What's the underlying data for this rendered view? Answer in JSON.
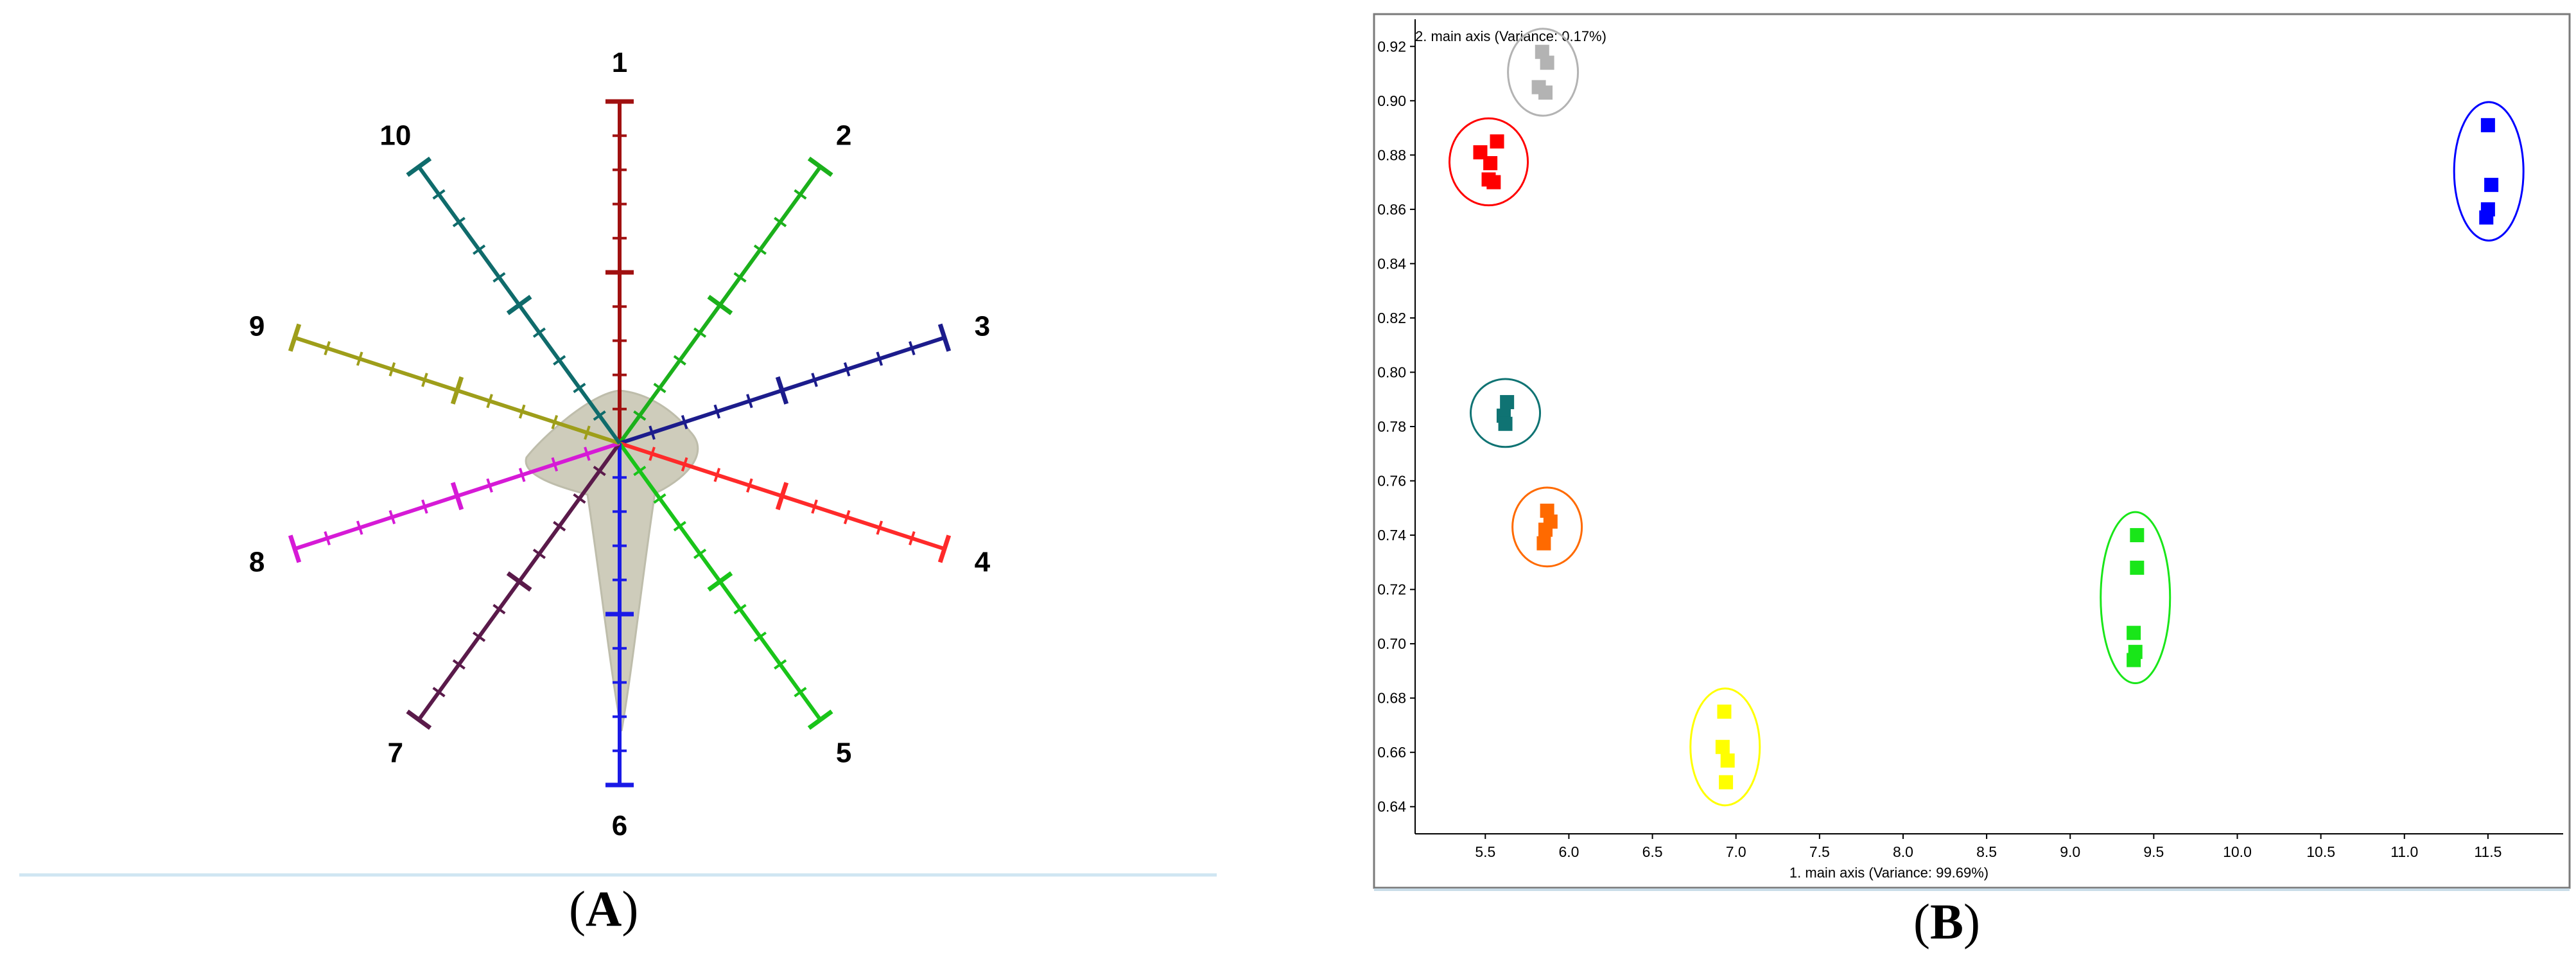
{
  "panels": {
    "a_label": "A",
    "b_label": "B"
  },
  "chart_data": [
    {
      "type": "radar",
      "panel": "A",
      "axes": [
        "1",
        "2",
        "3",
        "4",
        "5",
        "6",
        "7",
        "8",
        "9",
        "10"
      ],
      "axis_colors": [
        "#a01010",
        "#1bb01b",
        "#1c1c8c",
        "#ff2a2a",
        "#19c419",
        "#1a1ae6",
        "#5a1a4a",
        "#d61ad6",
        "#9e9e1a",
        "#0f6b6b"
      ],
      "ticks_per_axis": 10,
      "shape_color": "#c9c7b4",
      "grid": false
    },
    {
      "type": "scatter",
      "panel": "B",
      "title": "2. main axis (Variance: 0.17%)",
      "xlabel": "1. main axis (Variance: 99.69%)",
      "ylabel": "",
      "xlim": [
        5.08,
        11.95
      ],
      "ylim": [
        0.63,
        0.93
      ],
      "xticks": [
        "5.5",
        "6.0",
        "6.5",
        "7.0",
        "7.5",
        "8.0",
        "8.5",
        "9.0",
        "9.5",
        "10.0",
        "10.5",
        "11.0",
        "11.5"
      ],
      "yticks": [
        "0.92",
        "0.90",
        "0.88",
        "0.86",
        "0.84",
        "0.82",
        "0.80",
        "0.78",
        "0.76",
        "0.74",
        "0.72",
        "0.70",
        "0.68",
        "0.66",
        "0.64"
      ],
      "grid": false,
      "series": [
        {
          "color": "#b3b3b3",
          "points": [
            [
              5.84,
              0.918
            ],
            [
              5.87,
              0.914
            ],
            [
              5.82,
              0.905
            ],
            [
              5.86,
              0.903
            ]
          ]
        },
        {
          "color": "#ff0000",
          "points": [
            [
              5.47,
              0.881
            ],
            [
              5.57,
              0.885
            ],
            [
              5.53,
              0.877
            ],
            [
              5.52,
              0.871
            ],
            [
              5.55,
              0.87
            ]
          ]
        },
        {
          "color": "#0000ff",
          "points": [
            [
              11.5,
              0.891
            ],
            [
              11.52,
              0.869
            ],
            [
              11.5,
              0.86
            ],
            [
              11.49,
              0.857
            ]
          ]
        },
        {
          "color": "#0f7373",
          "points": [
            [
              5.63,
              0.789
            ],
            [
              5.61,
              0.784
            ],
            [
              5.62,
              0.781
            ]
          ]
        },
        {
          "color": "#ff6a00",
          "points": [
            [
              5.87,
              0.749
            ],
            [
              5.89,
              0.745
            ],
            [
              5.86,
              0.742
            ],
            [
              5.85,
              0.737
            ]
          ]
        },
        {
          "color": "#19e619",
          "points": [
            [
              9.4,
              0.74
            ],
            [
              9.4,
              0.728
            ],
            [
              9.38,
              0.704
            ],
            [
              9.39,
              0.697
            ],
            [
              9.38,
              0.694
            ]
          ]
        },
        {
          "color": "#ffff00",
          "points": [
            [
              6.93,
              0.675
            ],
            [
              6.92,
              0.662
            ],
            [
              6.95,
              0.657
            ],
            [
              6.94,
              0.649
            ]
          ]
        }
      ]
    }
  ]
}
